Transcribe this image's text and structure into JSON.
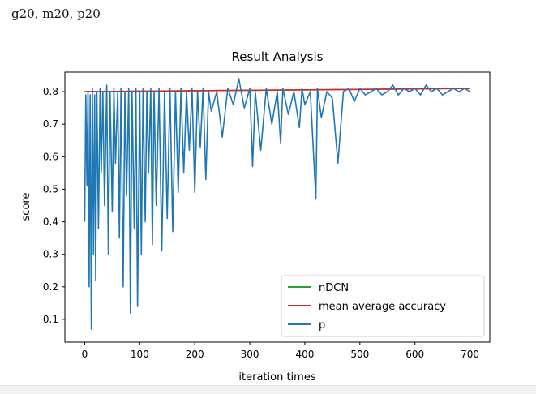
{
  "caption": "g20, m20, p20",
  "chart_data": {
    "type": "line",
    "title": "Result Analysis",
    "xlabel": "iteration times",
    "ylabel": "score",
    "xlim": [
      -36,
      736
    ],
    "ylim": [
      0.03,
      0.86
    ],
    "xticks": [
      0,
      100,
      200,
      300,
      400,
      500,
      600,
      700
    ],
    "yticks": [
      0.1,
      0.2,
      0.3,
      0.4,
      0.5,
      0.6,
      0.7,
      0.8
    ],
    "ytick_labels": [
      "0.1",
      "0.2",
      "0.3",
      "0.4",
      "0.5",
      "0.6",
      "0.7",
      "0.8"
    ],
    "legend_position": "lower-right",
    "series": [
      {
        "name": "nDCN",
        "color": "#2ca02c",
        "x": [
          0,
          700
        ],
        "y": [
          0.8,
          0.81
        ]
      },
      {
        "name": "mean average accuracy",
        "color": "#d62728",
        "x": [
          0,
          700
        ],
        "y": [
          0.8,
          0.81
        ]
      },
      {
        "name": "p",
        "color": "#1f77b4",
        "x": [
          0,
          2,
          4,
          6,
          8,
          10,
          12,
          14,
          16,
          18,
          20,
          22,
          25,
          28,
          30,
          33,
          36,
          40,
          43,
          46,
          50,
          53,
          56,
          60,
          63,
          66,
          70,
          73,
          76,
          80,
          83,
          86,
          90,
          93,
          96,
          100,
          103,
          106,
          110,
          113,
          116,
          120,
          123,
          126,
          130,
          135,
          140,
          145,
          150,
          155,
          160,
          165,
          170,
          175,
          180,
          185,
          190,
          195,
          200,
          205,
          210,
          215,
          220,
          225,
          230,
          240,
          250,
          260,
          270,
          280,
          290,
          300,
          305,
          310,
          320,
          330,
          340,
          350,
          356,
          360,
          370,
          380,
          390,
          395,
          400,
          410,
          420,
          423,
          430,
          440,
          450,
          460,
          470,
          480,
          490,
          500,
          510,
          520,
          530,
          540,
          550,
          560,
          570,
          580,
          590,
          600,
          610,
          620,
          630,
          640,
          650,
          660,
          670,
          680,
          690,
          700
        ],
        "y": [
          0.4,
          0.79,
          0.51,
          0.8,
          0.2,
          0.79,
          0.07,
          0.81,
          0.3,
          0.79,
          0.22,
          0.8,
          0.38,
          0.81,
          0.55,
          0.8,
          0.45,
          0.82,
          0.3,
          0.8,
          0.43,
          0.81,
          0.58,
          0.8,
          0.35,
          0.81,
          0.2,
          0.8,
          0.48,
          0.81,
          0.12,
          0.8,
          0.38,
          0.81,
          0.14,
          0.8,
          0.3,
          0.81,
          0.4,
          0.8,
          0.55,
          0.81,
          0.33,
          0.8,
          0.45,
          0.81,
          0.31,
          0.8,
          0.41,
          0.81,
          0.37,
          0.8,
          0.49,
          0.81,
          0.55,
          0.8,
          0.62,
          0.81,
          0.49,
          0.8,
          0.63,
          0.81,
          0.53,
          0.8,
          0.74,
          0.8,
          0.66,
          0.81,
          0.76,
          0.84,
          0.75,
          0.81,
          0.57,
          0.8,
          0.62,
          0.81,
          0.7,
          0.8,
          0.64,
          0.81,
          0.73,
          0.8,
          0.69,
          0.81,
          0.76,
          0.8,
          0.47,
          0.81,
          0.72,
          0.8,
          0.78,
          0.58,
          0.8,
          0.81,
          0.77,
          0.81,
          0.79,
          0.8,
          0.81,
          0.79,
          0.8,
          0.82,
          0.79,
          0.81,
          0.8,
          0.81,
          0.79,
          0.82,
          0.8,
          0.81,
          0.79,
          0.8,
          0.81,
          0.8,
          0.81,
          0.8
        ]
      }
    ]
  }
}
